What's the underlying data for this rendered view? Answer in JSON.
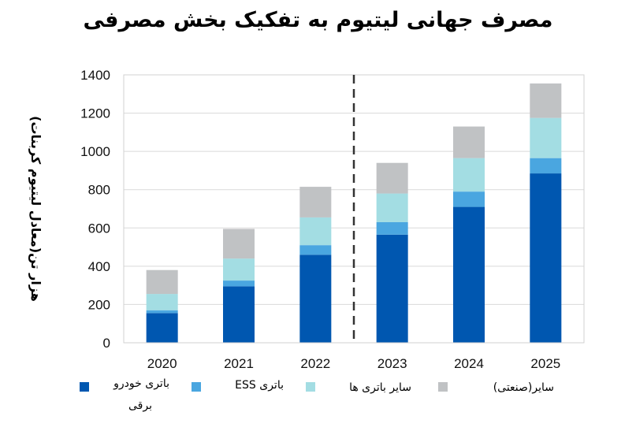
{
  "title": "مصرف جهانی لیتیوم به تفکیک بخش مصرفی",
  "chart_data": {
    "type": "bar",
    "stacked": true,
    "title": "مصرف جهانی لیتیوم به تفکیک بخش مصرفی",
    "ylabel": "هزار تن(معادل لیتیوم کربنات)",
    "xlabel": "",
    "categories": [
      "2020",
      "2021",
      "2022",
      "2023",
      "2024",
      "2025"
    ],
    "ylim": [
      0,
      1400
    ],
    "yticks": [
      0,
      200,
      400,
      600,
      800,
      1000,
      1200,
      1400
    ],
    "grid": true,
    "divider_after_category": "2022",
    "legend_position": "bottom",
    "series": [
      {
        "name": "باتری خودرو برقی",
        "color": "#0057b0",
        "values": [
          155,
          295,
          460,
          565,
          710,
          885
        ]
      },
      {
        "name": "باتری ESS",
        "color": "#4aa6e0",
        "values": [
          15,
          30,
          50,
          65,
          80,
          80
        ]
      },
      {
        "name": "سایر باتری ها",
        "color": "#a3dde3",
        "values": [
          85,
          115,
          145,
          150,
          175,
          210
        ]
      },
      {
        "name": "سایر(صنعتی)",
        "color": "#c0c2c4",
        "values": [
          125,
          155,
          160,
          160,
          165,
          180
        ]
      }
    ]
  },
  "legend": {
    "ev_line1": "باتری خودرو",
    "ev_line2": "برقی",
    "ess": "باتری ESS",
    "other_batteries": "سایر باتری ها",
    "industrial": "سایر(صنعتی)"
  }
}
